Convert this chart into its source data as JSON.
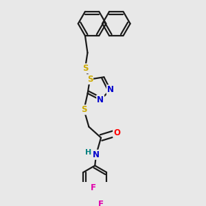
{
  "bg_color": "#e8e8e8",
  "bond_color": "#1a1a1a",
  "bond_width": 1.6,
  "atom_colors": {
    "S": "#ccaa00",
    "N": "#0000cc",
    "O": "#ff0000",
    "F": "#e000aa",
    "H": "#008080",
    "C": "#1a1a1a"
  },
  "font_size": 8.5
}
